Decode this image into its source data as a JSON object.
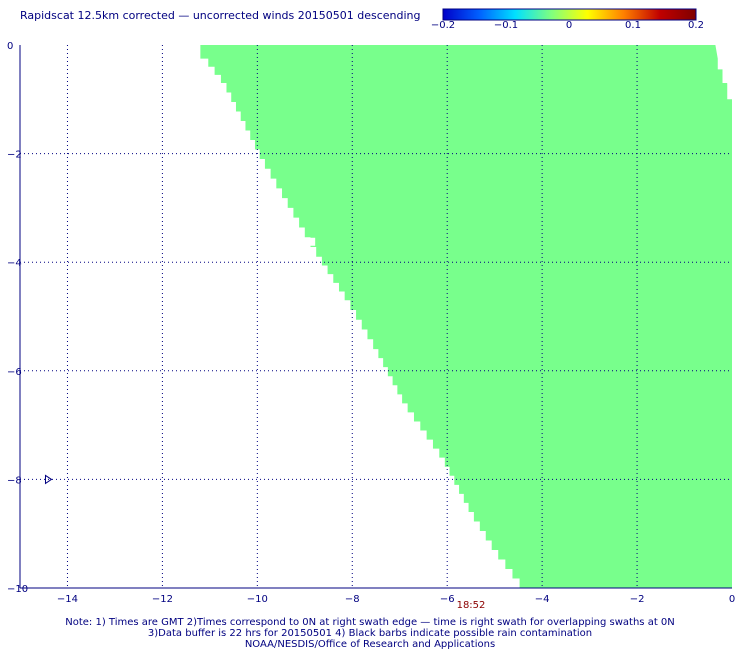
{
  "title": "Rapidscat 12.5km corrected — uncorrected winds 20150501 descending",
  "colorbar": {
    "tick_labels": [
      "−0.2",
      "−0.1",
      "0",
      "0.1",
      "0.2"
    ],
    "colors": [
      "#0000c8",
      "#0060ff",
      "#00e0ff",
      "#7fff7f",
      "#ffff00",
      "#ff8000",
      "#c00000",
      "#7f0000"
    ]
  },
  "time_label": "18:52",
  "notes": [
    "Note: 1) Times are GMT 2)Times correspond to 0N at right swath edge — time is right swath for overlapping swaths at 0N",
    "3)Data buffer is 22 hrs for 20150501 4) Black barbs indicate possible rain contamination",
    "NOAA/NESDIS/Office of Research and Applications"
  ],
  "chart_data": {
    "type": "heatmap",
    "xlim": [
      -15,
      0
    ],
    "ylim": [
      -10,
      0
    ],
    "x_tick_labels": [
      "−14",
      "−12",
      "−10",
      "−8",
      "−6",
      "−4",
      "−2",
      "0"
    ],
    "y_tick_labels": [
      "0",
      "−2",
      "−4",
      "−6",
      "−8",
      "−10"
    ],
    "swath_value": 0,
    "swath_color": "#78ff8c",
    "grid": true,
    "swath_left_edge": [
      [
        -11.3,
        0
      ],
      [
        -11.1,
        -0.25
      ],
      [
        -10.7,
        -0.7
      ],
      [
        -10.3,
        -1.4
      ],
      [
        -9.9,
        -2.1
      ],
      [
        -9.3,
        -3.0
      ],
      [
        -8.7,
        -3.9
      ],
      [
        -8.1,
        -4.7
      ],
      [
        -7.5,
        -5.6
      ],
      [
        -6.9,
        -6.6
      ],
      [
        -6.1,
        -7.6
      ],
      [
        -5.5,
        -8.6
      ],
      [
        -5.0,
        -9.3
      ],
      [
        -4.4,
        -10
      ]
    ],
    "swath_right_edge": [
      [
        0,
        -0.5
      ],
      [
        -0.1,
        -0.7
      ],
      [
        0,
        -1.0
      ]
    ],
    "barbs": [
      {
        "x": -14.4,
        "y": -8.0
      }
    ]
  }
}
